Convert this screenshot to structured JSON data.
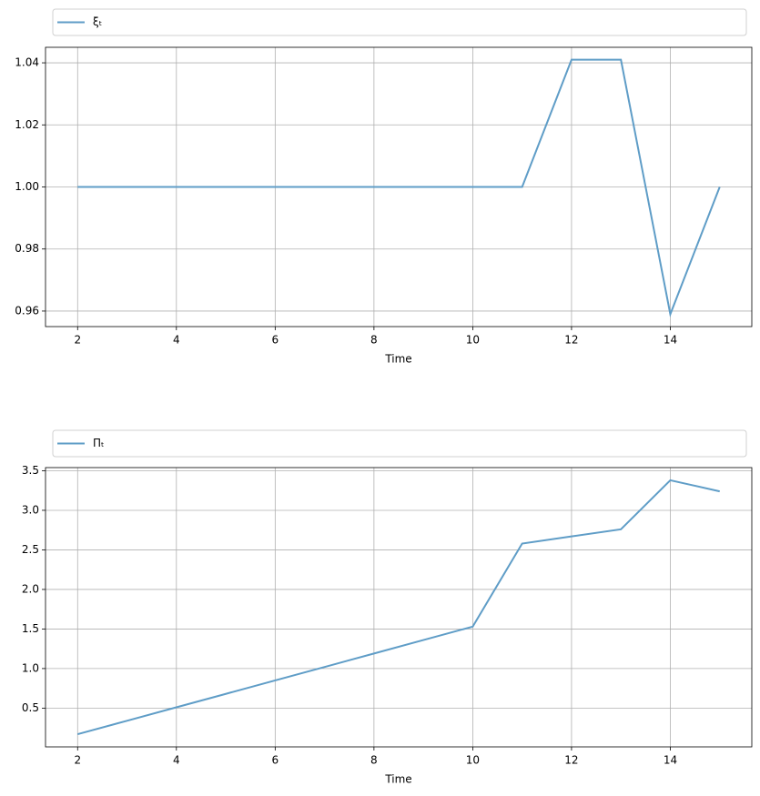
{
  "chart_data": [
    {
      "type": "line",
      "x_label": "Time",
      "x": [
        2,
        3,
        4,
        5,
        6,
        7,
        8,
        9,
        10,
        11,
        12,
        13,
        14,
        15
      ],
      "series": [
        {
          "name": "ξₜ",
          "color": "#5f9dc7",
          "values": [
            1.0,
            1.0,
            1.0,
            1.0,
            1.0,
            1.0,
            1.0,
            1.0,
            1.0,
            1.0,
            1.041,
            1.041,
            0.959,
            1.0
          ]
        }
      ],
      "xlim": [
        1.35,
        15.65
      ],
      "xticks": [
        2,
        4,
        6,
        8,
        10,
        12,
        14
      ],
      "ylim": [
        0.955,
        1.045
      ],
      "yticks": [
        0.96,
        0.98,
        {
          "value": 1,
          "label": "1.00"
        },
        1.02,
        1.04
      ],
      "grid": true,
      "legend": "top"
    },
    {
      "type": "line",
      "x_label": "Time",
      "x": [
        2,
        3,
        4,
        5,
        6,
        7,
        8,
        9,
        10,
        11,
        12,
        13,
        14,
        15
      ],
      "series": [
        {
          "name": "Πₜ",
          "color": "#5f9dc7",
          "values": [
            0.17,
            0.34,
            0.51,
            0.68,
            0.85,
            1.02,
            1.19,
            1.36,
            1.53,
            2.58,
            2.67,
            2.76,
            3.38,
            3.24
          ]
        }
      ],
      "xlim": [
        1.35,
        15.65
      ],
      "xticks": [
        2,
        4,
        6,
        8,
        10,
        12,
        14
      ],
      "ylim": [
        0.01,
        3.54
      ],
      "yticks": [
        0.5,
        {
          "value": 1,
          "label": "1.0"
        },
        1.5,
        {
          "value": 2,
          "label": "2.0"
        },
        2.5,
        {
          "value": 3,
          "label": "3.0"
        },
        3.5
      ],
      "grid": true,
      "legend": "top"
    }
  ]
}
